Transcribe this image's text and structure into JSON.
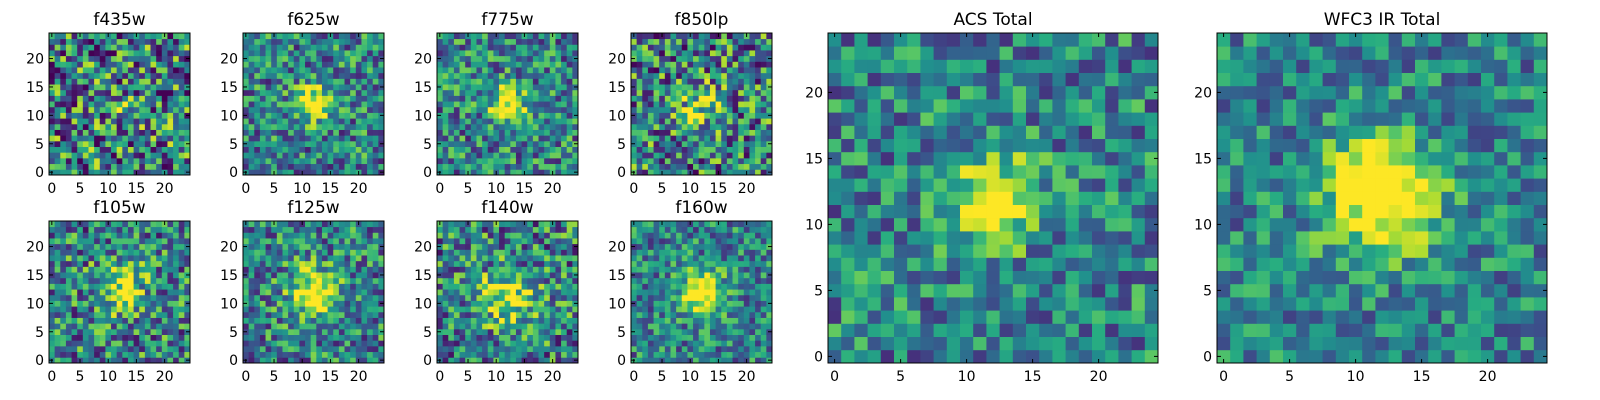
{
  "chart_data": [
    {
      "type": "heatmap",
      "title": "f435w",
      "grid_size": 25,
      "colormap": "viridis",
      "xlim": [
        0,
        25
      ],
      "ylim": [
        0,
        25
      ],
      "x_ticks": [
        0,
        5,
        10,
        15,
        20
      ],
      "y_ticks": [
        0,
        5,
        10,
        15,
        20
      ],
      "source_center": [
        12,
        12
      ],
      "source_peak": 0.1,
      "source_sigma": 3.0,
      "noise_level": 0.55,
      "seed": 11
    },
    {
      "type": "heatmap",
      "title": "f625w",
      "grid_size": 25,
      "colormap": "viridis",
      "xlim": [
        0,
        25
      ],
      "ylim": [
        0,
        25
      ],
      "x_ticks": [
        0,
        5,
        10,
        15,
        20
      ],
      "y_ticks": [
        0,
        5,
        10,
        15,
        20
      ],
      "source_center": [
        12,
        12
      ],
      "source_peak": 0.6,
      "source_sigma": 2.2,
      "noise_level": 0.4,
      "seed": 22
    },
    {
      "type": "heatmap",
      "title": "f775w",
      "grid_size": 25,
      "colormap": "viridis",
      "xlim": [
        0,
        25
      ],
      "ylim": [
        0,
        25
      ],
      "x_ticks": [
        0,
        5,
        10,
        15,
        20
      ],
      "y_ticks": [
        0,
        5,
        10,
        15,
        20
      ],
      "source_center": [
        12,
        12
      ],
      "source_peak": 0.6,
      "source_sigma": 2.2,
      "noise_level": 0.4,
      "seed": 33
    },
    {
      "type": "heatmap",
      "title": "f850lp",
      "grid_size": 25,
      "colormap": "viridis",
      "xlim": [
        0,
        25
      ],
      "ylim": [
        0,
        25
      ],
      "x_ticks": [
        0,
        5,
        10,
        15,
        20
      ],
      "y_ticks": [
        0,
        5,
        10,
        15,
        20
      ],
      "source_center": [
        12,
        12
      ],
      "source_peak": 0.35,
      "source_sigma": 2.5,
      "noise_level": 0.5,
      "seed": 44
    },
    {
      "type": "heatmap",
      "title": "f105w",
      "grid_size": 25,
      "colormap": "viridis",
      "xlim": [
        0,
        25
      ],
      "ylim": [
        0,
        25
      ],
      "x_ticks": [
        0,
        5,
        10,
        15,
        20
      ],
      "y_ticks": [
        0,
        5,
        10,
        15,
        20
      ],
      "source_center": [
        12,
        13
      ],
      "source_peak": 0.45,
      "source_sigma": 3.0,
      "noise_level": 0.45,
      "seed": 55
    },
    {
      "type": "heatmap",
      "title": "f125w",
      "grid_size": 25,
      "colormap": "viridis",
      "xlim": [
        0,
        25
      ],
      "ylim": [
        0,
        25
      ],
      "x_ticks": [
        0,
        5,
        10,
        15,
        20
      ],
      "y_ticks": [
        0,
        5,
        10,
        15,
        20
      ],
      "source_center": [
        12,
        12
      ],
      "source_peak": 0.55,
      "source_sigma": 3.0,
      "noise_level": 0.4,
      "seed": 66
    },
    {
      "type": "heatmap",
      "title": "f140w",
      "grid_size": 25,
      "colormap": "viridis",
      "xlim": [
        0,
        25
      ],
      "ylim": [
        0,
        25
      ],
      "x_ticks": [
        0,
        5,
        10,
        15,
        20
      ],
      "y_ticks": [
        0,
        5,
        10,
        15,
        20
      ],
      "source_center": [
        12,
        11
      ],
      "source_peak": 0.45,
      "source_sigma": 3.2,
      "noise_level": 0.45,
      "seed": 77
    },
    {
      "type": "heatmap",
      "title": "f160w",
      "grid_size": 25,
      "colormap": "viridis",
      "xlim": [
        0,
        25
      ],
      "ylim": [
        0,
        25
      ],
      "x_ticks": [
        0,
        5,
        10,
        15,
        20
      ],
      "y_ticks": [
        0,
        5,
        10,
        15,
        20
      ],
      "source_center": [
        12,
        12
      ],
      "source_peak": 0.7,
      "source_sigma": 2.5,
      "noise_level": 0.35,
      "seed": 88
    },
    {
      "type": "heatmap",
      "title": "ACS Total",
      "grid_size": 25,
      "colormap": "viridis",
      "xlim": [
        0,
        25
      ],
      "ylim": [
        0,
        25
      ],
      "x_ticks": [
        0,
        5,
        10,
        15,
        20
      ],
      "y_ticks": [
        0,
        5,
        10,
        15,
        20
      ],
      "source_center": [
        12,
        12
      ],
      "source_peak": 0.55,
      "source_sigma": 2.4,
      "noise_level": 0.35,
      "seed": 99
    },
    {
      "type": "heatmap",
      "title": "WFC3 IR Total",
      "grid_size": 25,
      "colormap": "viridis",
      "xlim": [
        0,
        25
      ],
      "ylim": [
        0,
        25
      ],
      "x_ticks": [
        0,
        5,
        10,
        15,
        20
      ],
      "y_ticks": [
        0,
        5,
        10,
        15,
        20
      ],
      "source_center": [
        12,
        12
      ],
      "source_peak": 0.7,
      "source_sigma": 3.0,
      "noise_level": 0.3,
      "seed": 111
    }
  ]
}
